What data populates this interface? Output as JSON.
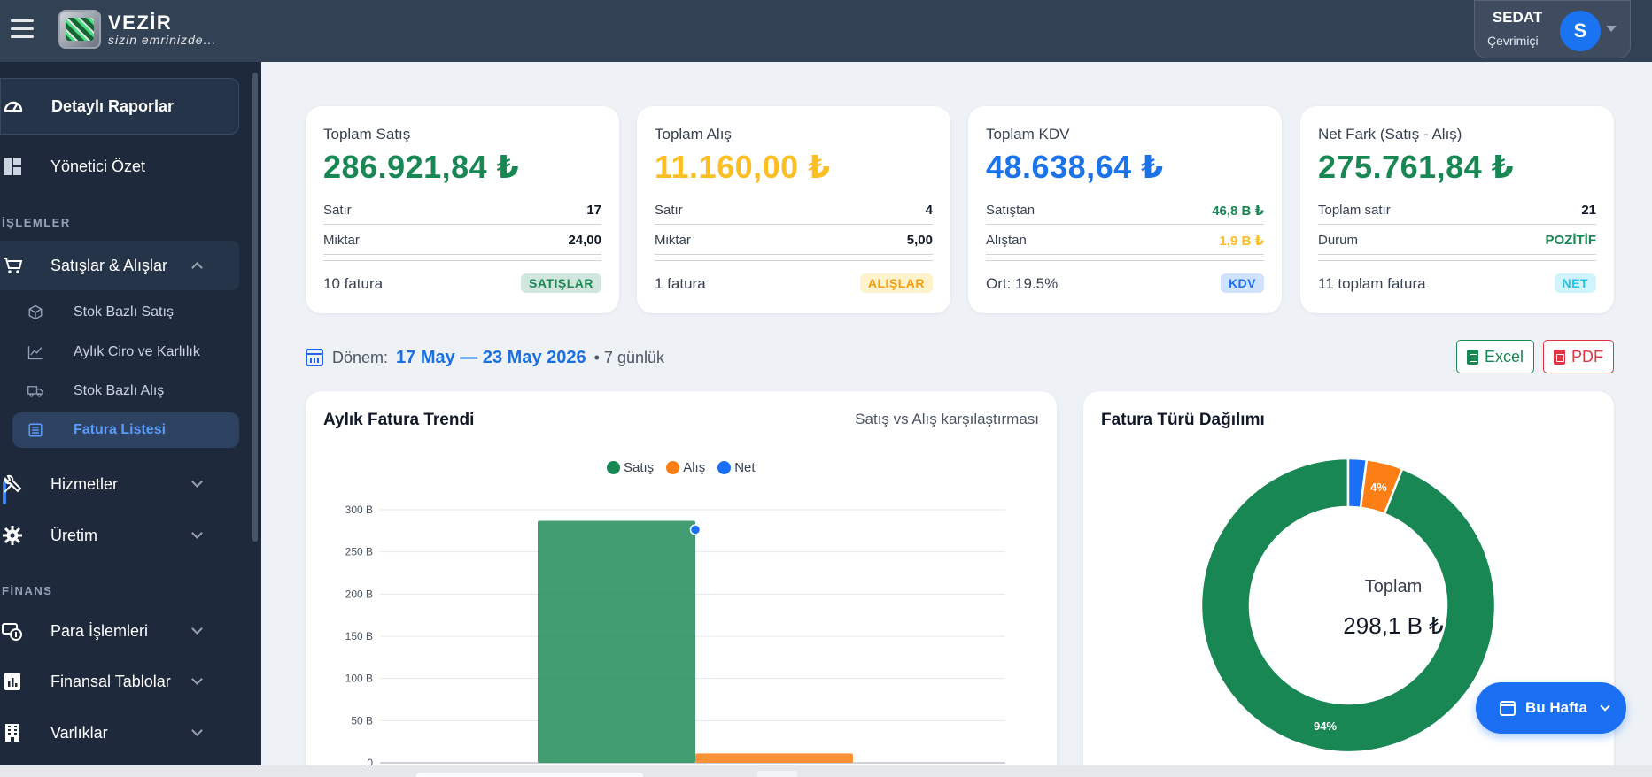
{
  "app": {
    "brand_name": "VEZİR",
    "brand_tagline": "sizin emrinizde...",
    "user_name": "SEDAT",
    "user_status": "Çevrimiçi",
    "user_initial": "S"
  },
  "sidebar": {
    "top_items": [
      {
        "label": "Detaylı Raporlar",
        "icon": "dashboard-gauge-icon"
      },
      {
        "label": "Yönetici Özet",
        "icon": "grid-layout-icon"
      }
    ],
    "section_islemler": "İŞLEMLER",
    "satislar": {
      "label": "Satışlar & Alışlar",
      "icon": "cart-icon",
      "expanded": true
    },
    "sub_items": [
      {
        "label": "Stok Bazlı Satış",
        "icon": "box-icon"
      },
      {
        "label": "Aylık Ciro ve Karlılık",
        "icon": "trend-chart-icon"
      },
      {
        "label": "Stok Bazlı Alış",
        "icon": "truck-icon"
      },
      {
        "label": "Fatura Listesi",
        "icon": "list-document-icon",
        "active": true
      }
    ],
    "hizmetler": "Hizmetler",
    "uretim": "Üretim",
    "section_finans": "FİNANS",
    "para_islemleri": "Para İşlemleri",
    "finansal_tablolar": "Finansal Tablolar",
    "varliklar": "Varlıklar"
  },
  "cards": [
    {
      "title": "Toplam Satış",
      "value": "286.921,84 ₺",
      "r1k": "Satır",
      "r1v": "17",
      "r2k": "Miktar",
      "r2v": "24,00",
      "footer": "10 fatura",
      "badge": "SATIŞLAR",
      "color": "#198754"
    },
    {
      "title": "Toplam Alış",
      "value": "11.160,00 ₺",
      "r1k": "Satır",
      "r1v": "4",
      "r2k": "Miktar",
      "r2v": "5,00",
      "footer": "1 fatura",
      "badge": "ALIŞLAR",
      "color": "#fbbf24"
    },
    {
      "title": "Toplam KDV",
      "value": "48.638,64 ₺",
      "r1k": "Satıştan",
      "r1v": "46,8 B ₺",
      "r2k": "Alıştan",
      "r2v": "1,9 B ₺",
      "footer": "Ort: 19.5%",
      "badge": "KDV",
      "color": "#1a73e8"
    },
    {
      "title": "Net Fark (Satış - Alış)",
      "value": "275.761,84 ₺",
      "r1k": "Toplam satır",
      "r1v": "21",
      "r2k": "Durum",
      "r2v": "POZİTİF",
      "footer": "11 toplam fatura",
      "badge": "NET",
      "color": "#198754"
    }
  ],
  "period": {
    "label": "Dönem:",
    "range": "17 May — 23 May 2026",
    "duration": "• 7 günlük"
  },
  "export": {
    "excel": "Excel",
    "pdf": "PDF"
  },
  "trend_panel": {
    "title": "Aylık Fatura Trendi",
    "subtitle": "Satış vs Alış karşılaştırması"
  },
  "donut_panel": {
    "title": "Fatura Türü Dağılımı",
    "center_label": "Toplam",
    "center_value": "298,1 B ₺"
  },
  "fab_label": "Bu Hafta",
  "chart_data": [
    {
      "type": "bar",
      "series": [
        {
          "name": "Satış",
          "color": "#198754",
          "values": [
            286.9
          ]
        },
        {
          "name": "Alış",
          "color": "#fd7e14",
          "values": [
            11.2
          ]
        },
        {
          "name": "Net",
          "color": "#1a6ff2",
          "values": [
            275.8
          ]
        }
      ],
      "yticks": [
        "300 B",
        "250 B",
        "200 B",
        "150 B",
        "100 B",
        "50 B",
        "0"
      ],
      "ylim": [
        0,
        300
      ],
      "legend": "top"
    },
    {
      "type": "pie",
      "labels": [
        "Satış",
        "Alış",
        "Net"
      ],
      "values": [
        94,
        4,
        2
      ],
      "slice_labels": [
        "94%",
        "4%",
        ""
      ],
      "colors": [
        "#198754",
        "#fd7e14",
        "#1a6ff2"
      ]
    }
  ]
}
